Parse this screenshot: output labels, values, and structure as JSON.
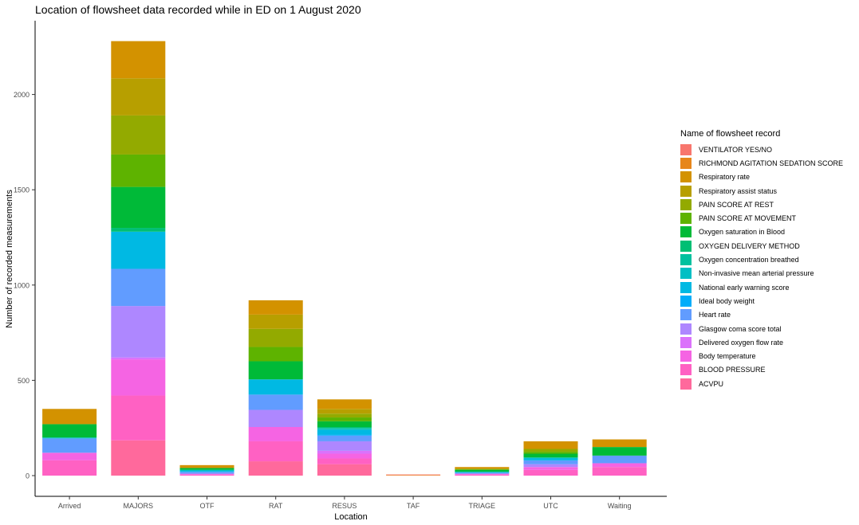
{
  "chart_data": {
    "type": "bar",
    "stacked": true,
    "title": "Location of flowsheet data recorded while in ED on 1 August 2020",
    "xlabel": "Location",
    "ylabel": "Number of recorded measurements",
    "ylim": [
      0,
      2300
    ],
    "yticks": [
      0,
      500,
      1000,
      1500,
      2000
    ],
    "grid": false,
    "legend_title": "Name of flowsheet record",
    "legend_position": "right",
    "categories": [
      "Arrived",
      "MAJORS",
      "OTF",
      "RAT",
      "RESUS",
      "TAF",
      "TRIAGE",
      "UTC",
      "Waiting"
    ],
    "series": [
      {
        "name": "VENTILATOR YES/NO",
        "color": "#F8766D",
        "values": [
          0,
          0,
          0,
          0,
          0,
          3,
          0,
          0,
          0
        ]
      },
      {
        "name": "RICHMOND AGITATION SEDATION SCORE",
        "color": "#E7861B",
        "values": [
          0,
          0,
          0,
          0,
          0,
          3,
          0,
          0,
          0
        ]
      },
      {
        "name": "Respiratory rate",
        "color": "#D39200",
        "values": [
          80,
          195,
          15,
          75,
          50,
          0,
          10,
          40,
          40
        ]
      },
      {
        "name": "Respiratory assist status",
        "color": "#B79F00",
        "values": [
          0,
          195,
          0,
          75,
          25,
          0,
          0,
          0,
          0
        ]
      },
      {
        "name": "PAIN SCORE AT REST",
        "color": "#93AA00",
        "values": [
          0,
          205,
          0,
          95,
          20,
          0,
          0,
          15,
          0
        ]
      },
      {
        "name": "PAIN SCORE AT MOVEMENT",
        "color": "#5EB300",
        "values": [
          0,
          170,
          0,
          75,
          20,
          0,
          5,
          10,
          0
        ]
      },
      {
        "name": "Oxygen saturation in Blood",
        "color": "#00BA38",
        "values": [
          70,
          215,
          10,
          95,
          30,
          0,
          10,
          20,
          45
        ]
      },
      {
        "name": "OXYGEN DELIVERY METHOD",
        "color": "#00BF74",
        "values": [
          0,
          20,
          0,
          0,
          5,
          0,
          0,
          0,
          0
        ]
      },
      {
        "name": "Oxygen concentration breathed",
        "color": "#00C19F",
        "values": [
          0,
          0,
          0,
          0,
          5,
          0,
          0,
          0,
          0
        ]
      },
      {
        "name": "Non-invasive mean arterial pressure",
        "color": "#00BFC4",
        "values": [
          5,
          0,
          5,
          0,
          5,
          0,
          0,
          5,
          0
        ]
      },
      {
        "name": "National early warning score",
        "color": "#00B9E3",
        "values": [
          0,
          195,
          5,
          80,
          25,
          0,
          5,
          10,
          0
        ]
      },
      {
        "name": "Ideal body weight",
        "color": "#00ADFA",
        "values": [
          0,
          0,
          0,
          0,
          5,
          0,
          0,
          0,
          0
        ]
      },
      {
        "name": "Heart rate",
        "color": "#619CFF",
        "values": [
          75,
          195,
          10,
          80,
          30,
          0,
          5,
          20,
          40
        ]
      },
      {
        "name": "Glasgow coma score total",
        "color": "#AE87FF",
        "values": [
          0,
          270,
          0,
          90,
          50,
          0,
          0,
          15,
          0
        ]
      },
      {
        "name": "Delivered oxygen flow rate",
        "color": "#DB72FB",
        "values": [
          0,
          10,
          0,
          0,
          15,
          0,
          0,
          0,
          0
        ]
      },
      {
        "name": "Body temperature",
        "color": "#F564E3",
        "values": [
          40,
          190,
          5,
          75,
          25,
          0,
          5,
          15,
          20
        ]
      },
      {
        "name": "BLOOD PRESSURE",
        "color": "#FF61C3",
        "values": [
          80,
          235,
          5,
          105,
          30,
          0,
          5,
          30,
          45
        ]
      },
      {
        "name": "ACVPU",
        "color": "#FF699C",
        "values": [
          0,
          185,
          0,
          75,
          60,
          0,
          0,
          0,
          0
        ]
      }
    ]
  }
}
